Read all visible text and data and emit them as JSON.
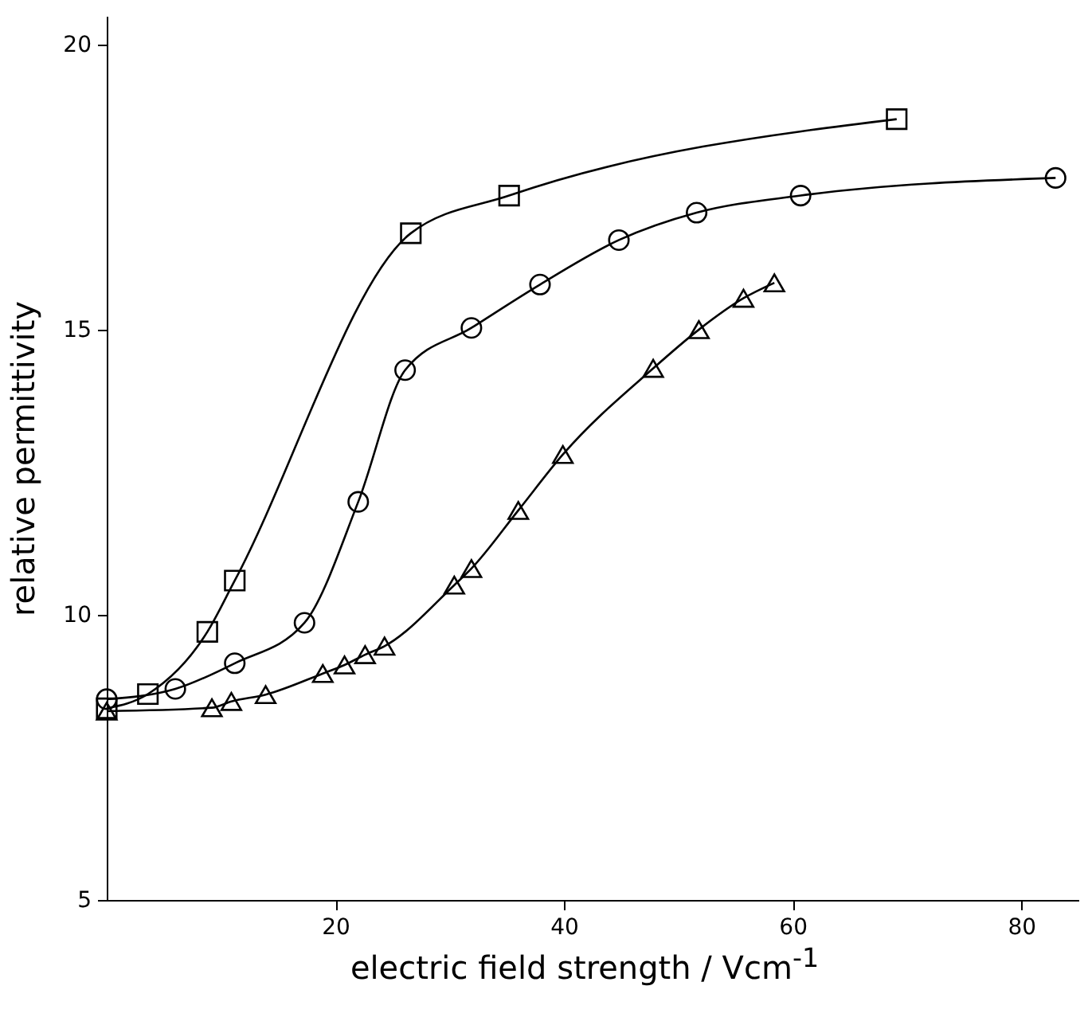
{
  "chart_data": {
    "type": "line",
    "xlabel": "electric field strength / Vcm$^{-1}$",
    "ylabel": "relative permittivity",
    "xlim": [
      0,
      85
    ],
    "ylim": [
      5,
      20.5
    ],
    "xticks": [
      20,
      40,
      60,
      80
    ],
    "yticks": [
      5,
      10,
      15,
      20
    ],
    "grid": false,
    "line_style": "solid",
    "series": [
      {
        "color": "#000000",
        "marker": "square",
        "x": [
          0,
          3.6,
          8.8,
          11.2,
          26.6,
          35.2,
          69.1
        ],
        "values": [
          8.36,
          8.61,
          9.7,
          10.6,
          16.69,
          17.35,
          18.69
        ]
      },
      {
        "color": "#000000",
        "marker": "circle",
        "x": [
          0,
          6.0,
          11.2,
          17.3,
          22.0,
          26.1,
          31.9,
          37.9,
          44.8,
          51.6,
          60.7,
          83.0
        ],
        "values": [
          8.52,
          8.7,
          9.15,
          9.86,
          11.98,
          14.29,
          15.03,
          15.79,
          16.57,
          17.05,
          17.35,
          17.66
        ]
      },
      {
        "color": "#000000",
        "marker": "triangle",
        "x": [
          0,
          9.2,
          10.9,
          13.9,
          18.9,
          20.8,
          22.6,
          24.3,
          30.4,
          31.9,
          36.0,
          39.9,
          47.8,
          51.8,
          55.7,
          58.4
        ],
        "values": [
          8.31,
          8.37,
          8.48,
          8.6,
          8.97,
          9.12,
          9.3,
          9.45,
          10.52,
          10.81,
          11.83,
          12.81,
          14.32,
          15.0,
          15.55,
          15.82
        ]
      }
    ]
  }
}
